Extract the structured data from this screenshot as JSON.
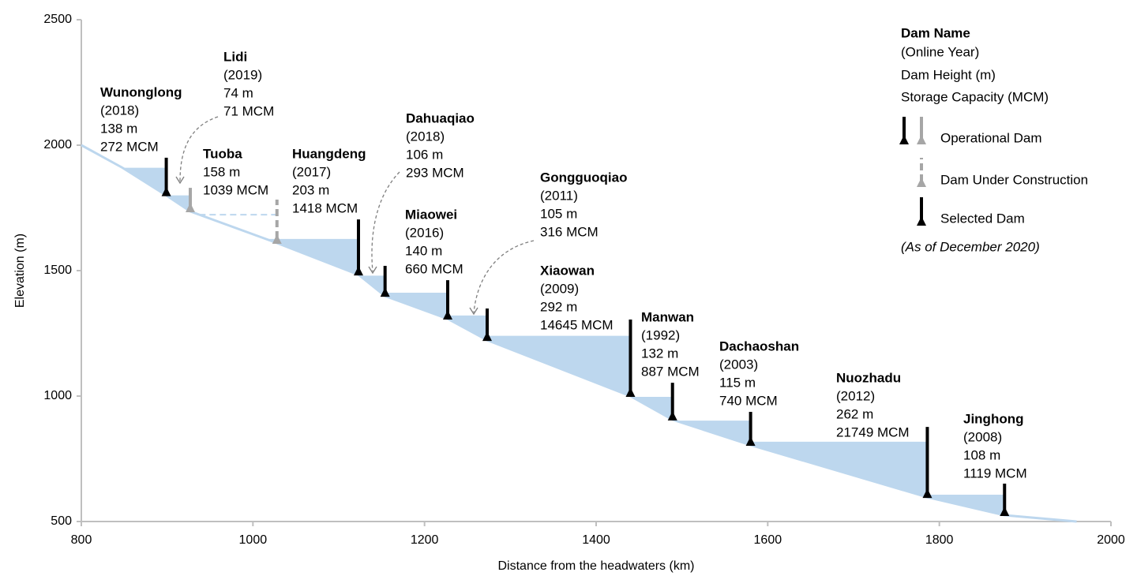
{
  "chart_data": {
    "type": "dam-profile",
    "x_label": "Distance from the headwaters (km)",
    "y_label": "Elevation (m)",
    "xlim": [
      800,
      2000
    ],
    "xticks": [
      800,
      1000,
      1200,
      1400,
      1600,
      1800,
      2000
    ],
    "ylim": [
      500,
      2500
    ],
    "yticks": [
      500,
      1000,
      1500,
      2000,
      2500
    ],
    "water_color": "#bdd7ee",
    "river": {
      "x": [
        800,
        848,
        899,
        927,
        1028,
        1123,
        1154,
        1227,
        1273,
        1440,
        1489,
        1580,
        1786,
        1876,
        1960
      ],
      "y": [
        2000,
        1910,
        1800,
        1736,
        1610,
        1484,
        1399,
        1308,
        1223,
        1000,
        906,
        805,
        597,
        525,
        500
      ]
    },
    "dams": [
      {
        "name": "Wunonglong",
        "year": "(2018)",
        "height": "138 m",
        "storage": "272 MCM",
        "x": 899,
        "base": 1800,
        "top": 1950,
        "level": 1910,
        "color": "#000000",
        "dashed": false
      },
      {
        "name": "Lidi",
        "year": "(2019)",
        "height": "74 m",
        "storage": "71 MCM",
        "x": 927,
        "base": 1736,
        "top": 1830,
        "level": 1800,
        "color": "#a6a6a6",
        "dashed": false
      },
      {
        "name": "Tuoba",
        "height": "158 m",
        "storage": "1039 MCM",
        "x": 1028,
        "base": 1610,
        "top": 1783,
        "level": 1723,
        "color": "#a6a6a6",
        "dashed": true
      },
      {
        "name": "Huangdeng",
        "year": "(2017)",
        "height": "203 m",
        "storage": "1418 MCM",
        "x": 1123,
        "base": 1484,
        "top": 1704,
        "level": 1626,
        "color": "#000000",
        "dashed": false
      },
      {
        "name": "Dahuaqiao",
        "year": "(2018)",
        "height": "106 m",
        "storage": "293 MCM",
        "x": 1154,
        "base": 1399,
        "top": 1519,
        "level": 1480,
        "color": "#000000",
        "dashed": false
      },
      {
        "name": "Miaowei",
        "year": "(2016)",
        "height": "140 m",
        "storage": "660 MCM",
        "x": 1227,
        "base": 1308,
        "top": 1462,
        "level": 1412,
        "color": "#000000",
        "dashed": false
      },
      {
        "name": "Gongguoqiao",
        "year": "(2011)",
        "height": "105 m",
        "storage": "316 MCM",
        "x": 1273,
        "base": 1223,
        "top": 1349,
        "level": 1321,
        "color": "#000000",
        "dashed": false
      },
      {
        "name": "Xiaowan",
        "year": "(2009)",
        "height": "292 m",
        "storage": "14645 MCM",
        "x": 1440,
        "base": 1000,
        "top": 1305,
        "level": 1240,
        "color": "#000000",
        "dashed": false
      },
      {
        "name": "Manwan",
        "year": "(1992)",
        "height": "132 m",
        "storage": "887 MCM",
        "x": 1489,
        "base": 906,
        "top": 1053,
        "level": 997,
        "color": "#000000",
        "dashed": false
      },
      {
        "name": "Dachaoshan",
        "year": "(2003)",
        "height": "115 m",
        "storage": "740 MCM",
        "x": 1580,
        "base": 805,
        "top": 937,
        "level": 902,
        "color": "#000000",
        "dashed": false
      },
      {
        "name": "Nuozhadu",
        "year": "(2012)",
        "height": "262 m",
        "storage": "21749 MCM",
        "x": 1786,
        "base": 597,
        "top": 877,
        "level": 818,
        "color": "#000000",
        "dashed": false
      },
      {
        "name": "Jinghong",
        "year": "(2008)",
        "height": "108 m",
        "storage": "1119 MCM",
        "x": 1876,
        "base": 525,
        "top": 651,
        "level": 607,
        "color": "#000000",
        "dashed": false
      }
    ],
    "legend": {
      "title": "Dam Name",
      "lines": [
        "(Online Year)",
        "Dam Height (m)",
        "Storage Capacity (MCM)"
      ],
      "entries": [
        {
          "name": "Operational Dam",
          "colors": [
            "#000000",
            "#a6a6a6"
          ],
          "dashed": false
        },
        {
          "name": "Dam Under Construction",
          "colors": [
            "#a6a6a6"
          ],
          "dashed": true
        },
        {
          "name": "Selected Dam",
          "colors": [
            "#000000"
          ],
          "dashed": false
        }
      ],
      "note": "(As of December 2020)"
    }
  }
}
